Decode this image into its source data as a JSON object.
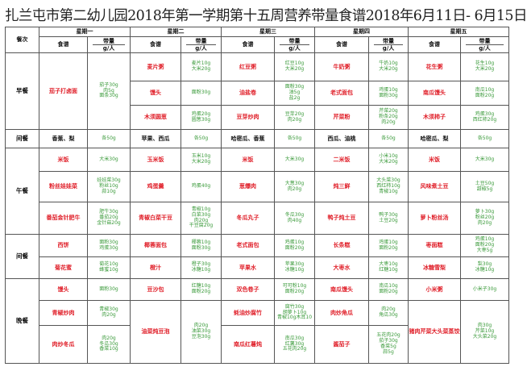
{
  "title": "扎兰屯市第二幼儿园2018年第一学期第十五周营养带量食谱2018年6月11日- 6月15日",
  "header": {
    "meal_col": "餐次",
    "days": [
      "星期一",
      "星期二",
      "星期三",
      "星期四",
      "星期五"
    ],
    "dish_col": "食谱",
    "amount_col": "带量",
    "unit": "g/人"
  },
  "colors": {
    "dish": "#e0202a",
    "amount": "#3a9a3a"
  },
  "meals": [
    {
      "name": "早餐",
      "days": [
        [
          {
            "dish": "茄子打卤面",
            "amount": "茄子30g\n肉5g\n面条30g",
            "span": 3
          }
        ],
        [
          {
            "dish": "麦片粥",
            "amount": "麦片10g\n大米20g",
            "span": 1
          },
          {
            "dish": "馒头",
            "amount": "面粉30g",
            "span": 1
          },
          {
            "dish": "木须圆葱",
            "amount": "鸡蛋20g\n圆葱30g",
            "span": 1
          }
        ],
        [
          {
            "dish": "红豆粥",
            "amount": "红豆10g\n大米20g",
            "span": 1
          },
          {
            "dish": "油盐卷",
            "amount": "面粉30g\n油5g\n盐2g",
            "span": 1
          },
          {
            "dish": "豆芽炒肉",
            "amount": "豆芽20g\n肉20g",
            "span": 1
          }
        ],
        [
          {
            "dish": "牛奶粥",
            "amount": "牛奶10g\n大米20g",
            "span": 1
          },
          {
            "dish": "老式面包",
            "amount": "鸡蛋10g\n面粉30g",
            "span": 1
          },
          {
            "dish": "芹菜粉",
            "amount": "芹菜20g\n粉条20g\n肉20g",
            "span": 1
          }
        ],
        [
          {
            "dish": "花生粥",
            "amount": "花生10g\n大米20g",
            "span": 1
          },
          {
            "dish": "南瓜馒头",
            "amount": "南瓜10g\n面粉20g",
            "span": 1
          },
          {
            "dish": "木须柿子",
            "amount": "鸡蛋30g\n西红柿20g",
            "span": 1
          }
        ]
      ]
    },
    {
      "name": "间餐",
      "plain": true,
      "days": [
        [
          {
            "dish": "香蕉、梨",
            "amount": "各50g",
            "span": 1
          }
        ],
        [
          {
            "dish": "苹果、西瓜",
            "amount": "各50g",
            "span": 1
          }
        ],
        [
          {
            "dish": "哈密瓜、香蕉",
            "amount": "各50g",
            "span": 1
          }
        ],
        [
          {
            "dish": "西瓜、油桃",
            "amount": "各50g",
            "span": 1
          }
        ],
        [
          {
            "dish": "哈密瓜、梨",
            "amount": "各50g",
            "span": 1
          }
        ]
      ]
    },
    {
      "name": "午餐",
      "days": [
        [
          {
            "dish": "米饭",
            "amount": "大米30g",
            "span": 1
          },
          {
            "dish": "粉丝娃娃菜",
            "amount": "娃娃菜30g\n粉丝10g\n蒜10g",
            "span": 1
          },
          {
            "dish": "番茄金针肥牛",
            "amount": "肥牛30g\n番茄20g\n金针菇20g",
            "span": 1
          }
        ],
        [
          {
            "dish": "玉米饭",
            "amount": "玉米10g\n大米20g",
            "span": 1
          },
          {
            "dish": "鸡蛋羹",
            "amount": "鸡蛋40g",
            "span": 1
          },
          {
            "dish": "青椒白菜干豆",
            "amount": "青椒10g\n白菜30g\n肉20g\n干豆腐20g",
            "span": 1
          }
        ],
        [
          {
            "dish": "米饭",
            "amount": "大米30g",
            "span": 1
          },
          {
            "dish": "葱爆肉",
            "amount": "大葱30g\n肉20g",
            "span": 1
          },
          {
            "dish": "冬瓜丸子",
            "amount": "冬瓜30g\n肉40g",
            "span": 1
          }
        ],
        [
          {
            "dish": "二米饭",
            "amount": "小米10g\n大米20g",
            "span": 1
          },
          {
            "dish": "炖三鲜",
            "amount": "大头菜30g\n西红柿10g\n青椒10g",
            "span": 1
          },
          {
            "dish": "鸭子炖土豆",
            "amount": "鸭子30g\n土豆20g",
            "span": 1
          }
        ],
        [
          {
            "dish": "米饭",
            "amount": "大米30g",
            "span": 1
          },
          {
            "dish": "风味煮土豆",
            "amount": "土豆50g\n甜椒5g",
            "span": 1
          },
          {
            "dish": "萝卜粉丝汤",
            "amount": "萝卜30g\n粉丝20g\n肉20g",
            "span": 1
          }
        ]
      ]
    },
    {
      "name": "间餐",
      "days": [
        [
          {
            "dish": "西饼",
            "amount": "面粉30g\n鸡蛋30g",
            "span": 1
          },
          {
            "dish": "菊花蜜",
            "amount": "菊花10g\n蜂蜜10g",
            "span": 1
          }
        ],
        [
          {
            "dish": "椰蓉面包",
            "amount": "椰蓉10g\n面粉30g",
            "span": 1
          },
          {
            "dish": "橙汁",
            "amount": "橙子30g\n冰糖10g",
            "span": 1
          }
        ],
        [
          {
            "dish": "老式面包",
            "amount": "鸡蛋10g\n面粉20g",
            "span": 1
          },
          {
            "dish": "苹果水",
            "amount": "苹果30g\n冰糖10g",
            "span": 1
          }
        ],
        [
          {
            "dish": "长条糕",
            "amount": "鸡蛋10g\n面粉20g",
            "span": 1
          },
          {
            "dish": "大枣水",
            "amount": "大枣10g\n红糖10g",
            "span": 1
          }
        ],
        [
          {
            "dish": "枣面糕",
            "amount": "鸡蛋10g\n面粉20g\n大枣5g",
            "span": 1
          },
          {
            "dish": "冰糖雪梨",
            "amount": "梨30g\n冰糖10g",
            "span": 1
          }
        ]
      ]
    },
    {
      "name": "晚餐",
      "days": [
        [
          {
            "dish": "馒头",
            "amount": "面粉30g",
            "span": 1
          },
          {
            "dish": "青椒炒肉",
            "amount": "青椒30g\n肉20g",
            "span": 1
          },
          {
            "dish": "肉炒冬瓜",
            "amount": "肉20g\n冬瓜30g\n香菜10g",
            "span": 1
          }
        ],
        [
          {
            "dish": "豆沙包",
            "amount": "红糖10g\n面粉20g",
            "span": 1
          },
          {
            "dish": "油菜炖豆泡",
            "amount": "肉20g\n油菜30g\n豆泡30g",
            "span": 2
          }
        ],
        [
          {
            "dish": "双色卷子",
            "amount": "可可粉10g\n面粉20g",
            "span": 1
          },
          {
            "dish": "蚝油炒腐竹",
            "amount": "腐竹30g\n胡萝卜10g\n青椒10g木耳10",
            "span": 1
          },
          {
            "dish": "南瓜红薯炖",
            "amount": "南瓜30g\n红薯30g\n五花肉20g",
            "span": 1
          }
        ],
        [
          {
            "dish": "南瓜馒头",
            "amount": "南瓜10g\n面粉20g",
            "span": 1
          },
          {
            "dish": "肉炒角瓜",
            "amount": "肉20g\n角瓜30g",
            "span": 1
          },
          {
            "dish": "酱茄子",
            "amount": "五花肉20g\n茄子30g\n香菜5g\n蒜5g",
            "span": 1
          }
        ],
        [
          {
            "dish": "小米粥",
            "amount": "小米子30g",
            "span": 1
          },
          {
            "dish": "猪肉芹菜大头菜蒸饺",
            "amount": "肉30g\n芹菜10g\n大头菜20g",
            "span": 2
          }
        ]
      ]
    }
  ]
}
